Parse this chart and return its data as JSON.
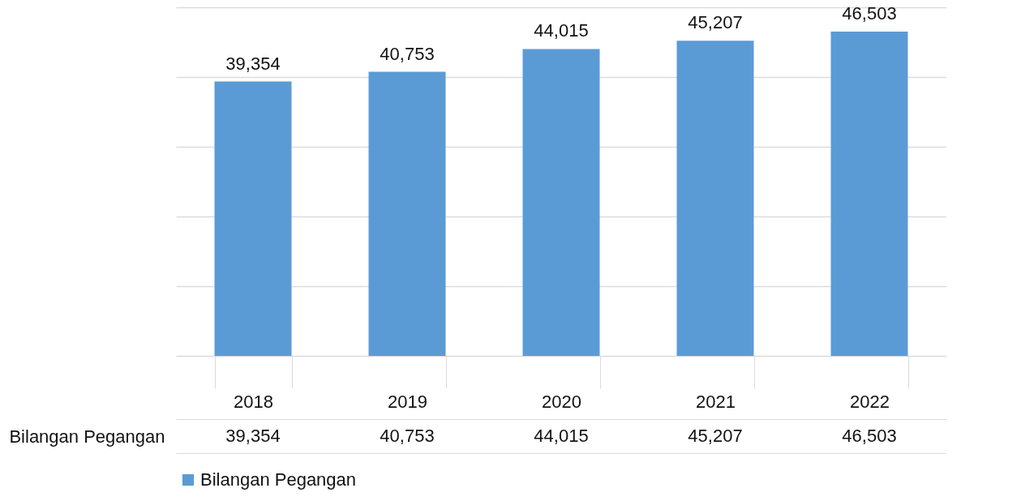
{
  "chart_data": {
    "type": "bar",
    "categories": [
      "2018",
      "2019",
      "2020",
      "2021",
      "2022"
    ],
    "series": [
      {
        "name": "Bilangan Pegangan",
        "color": "#5b9bd5",
        "values": [
          39354,
          40753,
          44015,
          45207,
          46503
        ],
        "value_labels": [
          "39,354",
          "40,753",
          "44,015",
          "45,207",
          "46,503"
        ]
      }
    ],
    "relative": false,
    "grid": "y",
    "tick_labels": "x",
    "legend": "bottom"
  }
}
